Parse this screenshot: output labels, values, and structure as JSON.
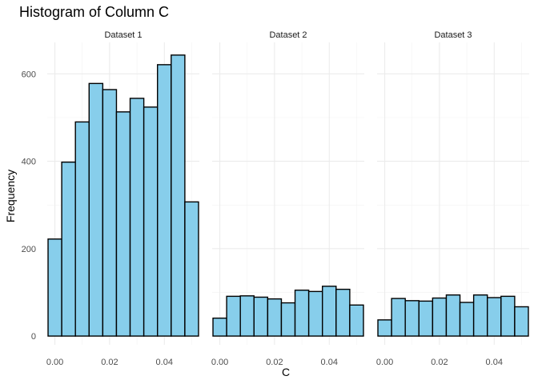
{
  "chart_data": {
    "type": "bar",
    "title": "Histogram of Column C",
    "xlabel": "C",
    "ylabel": "Frequency",
    "xlim": [
      -0.0028,
      0.0528
    ],
    "ylim": [
      -20,
      672
    ],
    "x_ticks": [
      0.0,
      0.02,
      0.04
    ],
    "x_tick_labels": [
      "0.00",
      "0.02",
      "0.04"
    ],
    "y_ticks": [
      0,
      200,
      400,
      600
    ],
    "y_tick_labels": [
      "0",
      "200",
      "400",
      "600"
    ],
    "grid": true,
    "fill_color": "#87ceeb",
    "edge_color": "#000000",
    "bin_width": 0.005,
    "bin_centers": [
      0.0,
      0.005,
      0.01,
      0.015,
      0.02,
      0.025,
      0.03,
      0.035,
      0.04,
      0.045,
      0.05
    ],
    "panels": [
      {
        "label": "Dataset 1",
        "values": [
          222,
          398,
          490,
          578,
          564,
          513,
          544,
          524,
          621,
          643,
          307
        ]
      },
      {
        "label": "Dataset 2",
        "values": [
          41,
          91,
          92,
          89,
          85,
          76,
          105,
          102,
          114,
          107,
          71
        ]
      },
      {
        "label": "Dataset 3",
        "values": [
          37,
          86,
          81,
          80,
          87,
          94,
          77,
          94,
          88,
          91,
          67
        ]
      }
    ]
  }
}
